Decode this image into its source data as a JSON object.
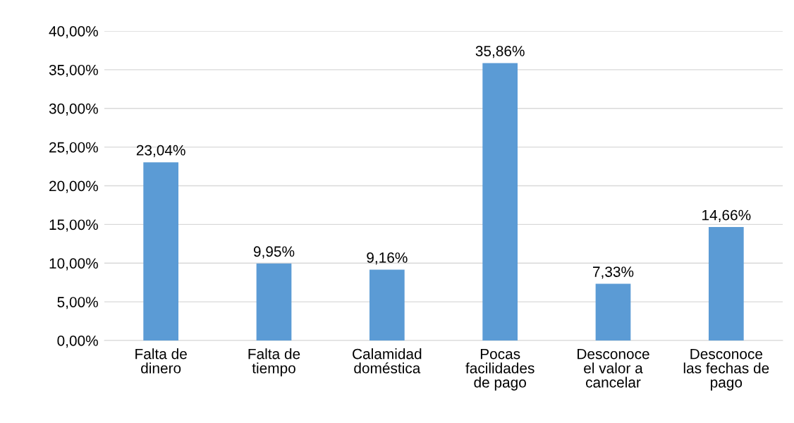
{
  "chart_data": {
    "type": "bar",
    "categories": [
      "Falta de\ndinero",
      "Falta de\ntiempo",
      "Calamidad\ndoméstica",
      "Pocas\nfacilidades\nde pago",
      "Desconoce\nel valor a\ncancelar",
      "Desconoce\nlas fechas de\npago"
    ],
    "values": [
      23.04,
      9.95,
      9.16,
      35.86,
      7.33,
      14.66
    ],
    "value_labels": [
      "23,04%",
      "9,95%",
      "9,16%",
      "35,86%",
      "7,33%",
      "14,66%"
    ],
    "color": "#5b9bd5",
    "ylim": [
      0,
      40
    ],
    "yticks": [
      {
        "value": 0,
        "label": "0,00%"
      },
      {
        "value": 5,
        "label": "5,00%"
      },
      {
        "value": 10,
        "label": "10,00%"
      },
      {
        "value": 15,
        "label": "15,00%"
      },
      {
        "value": 20,
        "label": "20,00%"
      },
      {
        "value": 25,
        "label": "25,00%"
      },
      {
        "value": 30,
        "label": "30,00%"
      },
      {
        "value": 35,
        "label": "35,00%"
      },
      {
        "value": 40,
        "label": "40,00%"
      }
    ],
    "grid": "y"
  }
}
